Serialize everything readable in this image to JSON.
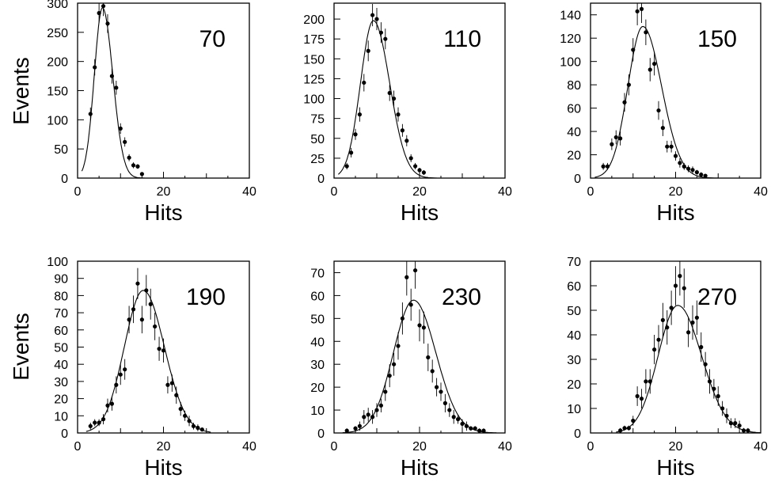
{
  "figure": {
    "ylabel": "Events",
    "xlabel": "Hits"
  },
  "chart_data": [
    {
      "type": "scatter",
      "annotation": "70",
      "xlabel": "Hits",
      "ylabel": "Events",
      "xlim": [
        0,
        40
      ],
      "ylim": [
        0,
        300
      ],
      "xticks": [
        0,
        20,
        40
      ],
      "yticks": [
        0,
        50,
        100,
        150,
        200,
        250,
        300
      ],
      "grid": false,
      "series": [
        {
          "kind": "points_with_error_bars",
          "x": [
            3,
            4,
            5,
            6,
            7,
            8,
            9,
            10,
            11,
            12,
            13,
            14,
            15
          ],
          "y": [
            110,
            190,
            283,
            295,
            265,
            175,
            155,
            85,
            62,
            35,
            22,
            20,
            7
          ],
          "err": [
            11,
            14,
            17,
            17,
            16,
            13,
            12,
            9,
            8,
            6,
            5,
            4,
            3
          ]
        },
        {
          "kind": "fit_curve",
          "x_range": [
            1,
            16
          ],
          "peak_x": 5.8,
          "peak_y": 292,
          "sigma_left": 1.9,
          "sigma_right": 2.4
        }
      ]
    },
    {
      "type": "scatter",
      "annotation": "110",
      "xlabel": "Hits",
      "ylabel": "Events",
      "xlim": [
        0,
        40
      ],
      "ylim": [
        0,
        220
      ],
      "xticks": [
        0,
        20,
        40
      ],
      "yticks": [
        0,
        25,
        50,
        75,
        100,
        125,
        150,
        175,
        200
      ],
      "grid": false,
      "series": [
        {
          "kind": "points_with_error_bars",
          "x": [
            3,
            4,
            5,
            6,
            7,
            8,
            9,
            10,
            11,
            12,
            13,
            14,
            15,
            16,
            17,
            18,
            19,
            20,
            21
          ],
          "y": [
            15,
            32,
            55,
            80,
            120,
            160,
            205,
            200,
            183,
            175,
            107,
            100,
            80,
            60,
            47,
            25,
            15,
            10,
            7
          ],
          "err": [
            4,
            6,
            7,
            9,
            11,
            13,
            14,
            14,
            13,
            13,
            10,
            10,
            9,
            8,
            7,
            5,
            4,
            3,
            3
          ]
        },
        {
          "kind": "fit_curve",
          "x_range": [
            1,
            24
          ],
          "peak_x": 9.2,
          "peak_y": 198,
          "sigma_left": 3.0,
          "sigma_right": 3.8
        }
      ]
    },
    {
      "type": "scatter",
      "annotation": "150",
      "xlabel": "Hits",
      "ylabel": "Events",
      "xlim": [
        0,
        40
      ],
      "ylim": [
        0,
        150
      ],
      "xticks": [
        0,
        20,
        40
      ],
      "yticks": [
        0,
        20,
        40,
        60,
        80,
        100,
        120,
        140
      ],
      "grid": false,
      "series": [
        {
          "kind": "points_with_error_bars",
          "x": [
            3,
            4,
            5,
            6,
            7,
            8,
            9,
            10,
            11,
            12,
            13,
            14,
            15,
            16,
            17,
            18,
            19,
            20,
            21,
            22,
            23,
            24,
            25,
            26,
            27
          ],
          "y": [
            10,
            10,
            29,
            35,
            34,
            65,
            80,
            110,
            143,
            145,
            125,
            93,
            98,
            58,
            43,
            27,
            27,
            19,
            13,
            10,
            8,
            7,
            5,
            3,
            2
          ],
          "err": [
            3,
            3,
            5,
            6,
            6,
            8,
            9,
            10,
            12,
            12,
            11,
            10,
            10,
            8,
            7,
            5,
            5,
            4,
            4,
            3,
            3,
            3,
            2,
            2,
            1
          ]
        },
        {
          "kind": "fit_curve",
          "x_range": [
            1,
            30
          ],
          "peak_x": 12.3,
          "peak_y": 130,
          "sigma_left": 3.5,
          "sigma_right": 4.4
        }
      ]
    },
    {
      "type": "scatter",
      "annotation": "190",
      "xlabel": "Hits",
      "ylabel": "Events",
      "xlim": [
        0,
        40
      ],
      "ylim": [
        0,
        100
      ],
      "xticks": [
        0,
        20,
        40
      ],
      "yticks": [
        0,
        10,
        20,
        30,
        40,
        50,
        60,
        70,
        80,
        90,
        100
      ],
      "grid": false,
      "series": [
        {
          "kind": "points_with_error_bars",
          "x": [
            3,
            4,
            5,
            6,
            7,
            8,
            9,
            10,
            11,
            12,
            13,
            14,
            15,
            16,
            17,
            18,
            19,
            20,
            21,
            22,
            23,
            24,
            25,
            26,
            27,
            28,
            29
          ],
          "y": [
            4,
            6,
            6,
            8,
            16,
            17,
            28,
            34,
            37,
            66,
            72,
            87,
            66,
            83,
            75,
            62,
            49,
            48,
            28,
            29,
            22,
            14,
            10,
            7,
            4,
            3,
            2
          ],
          "err": [
            2,
            2,
            2,
            3,
            4,
            4,
            5,
            6,
            6,
            8,
            8,
            9,
            8,
            9,
            9,
            8,
            7,
            7,
            5,
            5,
            5,
            4,
            3,
            3,
            2,
            2,
            1
          ]
        },
        {
          "kind": "fit_curve",
          "x_range": [
            2,
            31
          ],
          "peak_x": 15.3,
          "peak_y": 83,
          "sigma_left": 4.4,
          "sigma_right": 4.9
        }
      ]
    },
    {
      "type": "scatter",
      "annotation": "230",
      "xlabel": "Hits",
      "ylabel": "Events",
      "xlim": [
        0,
        40
      ],
      "ylim": [
        0,
        75
      ],
      "xticks": [
        0,
        20,
        40
      ],
      "yticks": [
        0,
        10,
        20,
        30,
        40,
        50,
        60,
        70
      ],
      "grid": false,
      "series": [
        {
          "kind": "points_with_error_bars",
          "x": [
            3,
            5,
            6,
            7,
            8,
            9,
            10,
            11,
            12,
            13,
            14,
            15,
            16,
            17,
            18,
            19,
            20,
            21,
            22,
            23,
            24,
            25,
            26,
            27,
            28,
            29,
            30,
            31,
            32,
            33,
            34,
            35
          ],
          "y": [
            1,
            2,
            3,
            7,
            8,
            7,
            10,
            12,
            18,
            25,
            30,
            38,
            50,
            68,
            56,
            71,
            47,
            46,
            33,
            27,
            20,
            18,
            13,
            10,
            7,
            6,
            4,
            3,
            2,
            2,
            1,
            1
          ],
          "err": [
            1,
            1,
            2,
            3,
            3,
            3,
            3,
            3,
            4,
            5,
            5,
            6,
            7,
            8,
            7,
            8,
            7,
            7,
            6,
            5,
            4,
            4,
            4,
            3,
            3,
            2,
            2,
            2,
            1,
            1,
            1,
            1
          ]
        },
        {
          "kind": "fit_curve",
          "x_range": [
            2,
            38
          ],
          "peak_x": 18.6,
          "peak_y": 58,
          "sigma_left": 4.7,
          "sigma_right": 5.2
        }
      ]
    },
    {
      "type": "scatter",
      "annotation": "270",
      "xlabel": "Hits",
      "ylabel": "Events",
      "xlim": [
        0,
        40
      ],
      "ylim": [
        0,
        70
      ],
      "xticks": [
        0,
        20,
        40
      ],
      "yticks": [
        0,
        10,
        20,
        30,
        40,
        50,
        60,
        70
      ],
      "grid": false,
      "series": [
        {
          "kind": "points_with_error_bars",
          "x": [
            7,
            8,
            9,
            10,
            11,
            12,
            13,
            14,
            15,
            16,
            17,
            18,
            19,
            20,
            21,
            22,
            23,
            24,
            25,
            26,
            27,
            28,
            29,
            30,
            31,
            32,
            33,
            34,
            35,
            36,
            37
          ],
          "y": [
            1,
            2,
            2,
            5,
            15,
            14,
            21,
            21,
            34,
            38,
            46,
            43,
            51,
            60,
            64,
            59,
            41,
            45,
            47,
            35,
            28,
            21,
            18,
            15,
            10,
            7,
            4,
            4,
            3,
            1,
            1
          ],
          "err": [
            1,
            1,
            1,
            2,
            4,
            4,
            5,
            5,
            6,
            6,
            7,
            7,
            7,
            8,
            8,
            8,
            6,
            7,
            7,
            6,
            5,
            5,
            4,
            4,
            3,
            3,
            2,
            2,
            2,
            1,
            1
          ]
        },
        {
          "kind": "fit_curve",
          "x_range": [
            6,
            40
          ],
          "peak_x": 20.5,
          "peak_y": 52,
          "sigma_left": 4.6,
          "sigma_right": 5.6
        }
      ]
    }
  ]
}
